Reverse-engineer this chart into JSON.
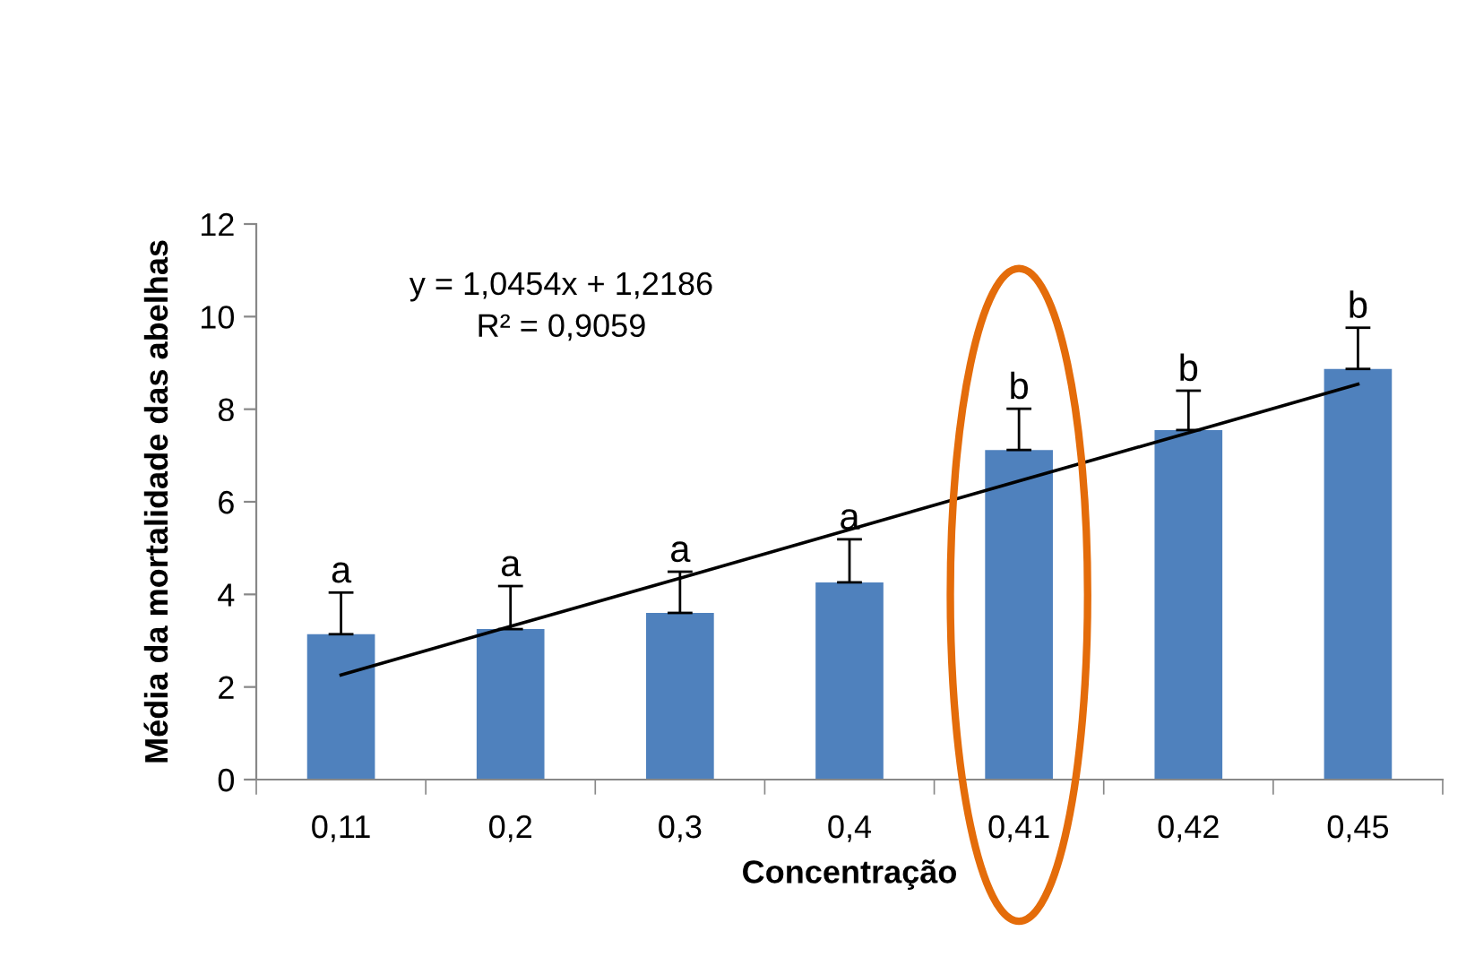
{
  "chart_data": {
    "type": "bar",
    "xlabel": "Concentração",
    "ylabel": "Média da mortalidade das abelhas",
    "categories": [
      "0,11",
      "0,2",
      "0,3",
      "0,4",
      "0,41",
      "0,42",
      "0,45"
    ],
    "series": [
      {
        "color": "#4f81bd",
        "values": [
          3.14,
          3.25,
          3.6,
          4.26,
          7.12,
          7.55,
          8.87
        ],
        "errors": [
          [
            3.14,
            4.04
          ],
          [
            3.25,
            4.18
          ],
          [
            3.6,
            4.49
          ],
          [
            4.26,
            5.19
          ],
          [
            7.12,
            8.01
          ],
          [
            7.55,
            8.4
          ],
          [
            8.87,
            9.76
          ]
        ]
      },
      {
        "type": "line",
        "color": "#000000",
        "values": [
          2.26,
          3.31,
          4.35,
          5.4,
          6.45,
          7.49,
          8.54
        ]
      }
    ],
    "ylim": [
      0,
      12
    ],
    "yticks": [
      0,
      2,
      4,
      6,
      8,
      10,
      12
    ],
    "grid": false,
    "legend": false,
    "annotations": [
      "y = 1,0454x + 1,2186\nR² = 0,9059",
      {
        "text": "a",
        "x": "0,11",
        "y": 4.04
      },
      {
        "text": "a",
        "x": "0,2",
        "y": 4.18
      },
      {
        "text": "a",
        "x": "0,3",
        "y": 4.49
      },
      {
        "text": "a",
        "x": "0,4",
        "y": 5.19
      },
      {
        "text": "b",
        "x": "0,41",
        "y": 8.01
      },
      {
        "text": "b",
        "x": "0,42",
        "y": 8.4
      },
      {
        "text": "b",
        "x": "0,45",
        "y": 9.76
      }
    ]
  }
}
